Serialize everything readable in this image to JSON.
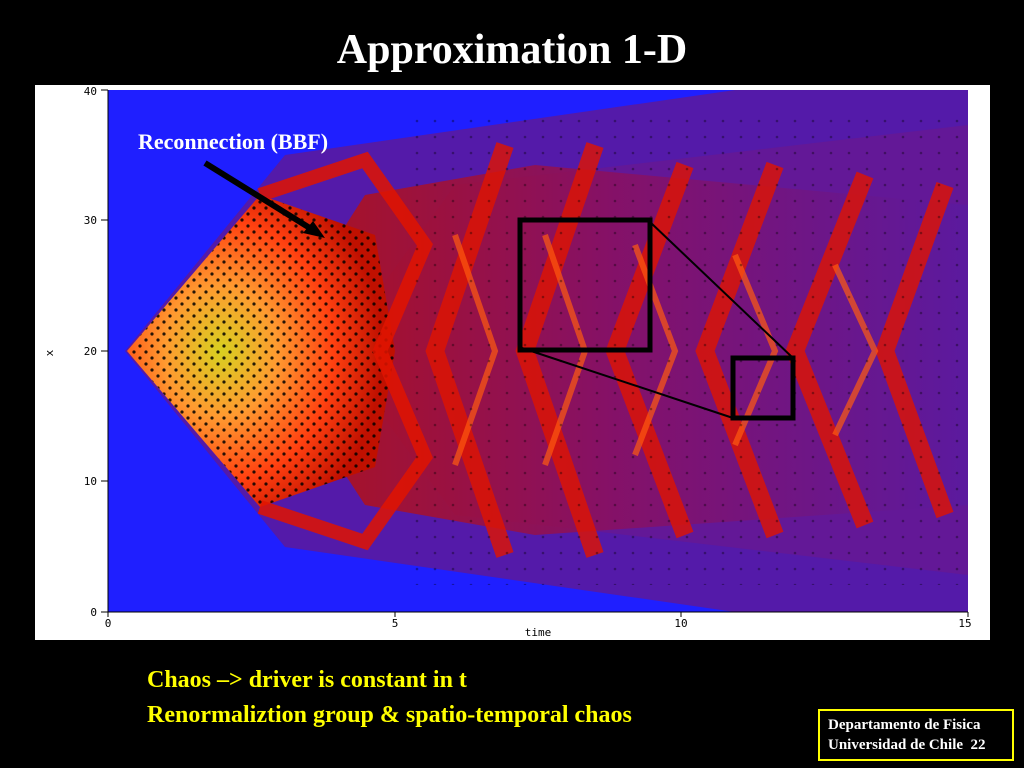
{
  "slide": {
    "title": "Approximation 1-D",
    "callout": "Reconnection (BBF)",
    "caption_line1": "Chaos –> driver is constant in t",
    "caption_line2": "Renormaliztion group & spatio-temporal chaos",
    "footer_line1": "Departamento de Fisica",
    "footer_line2": "Universidad de Chile  22"
  },
  "plot": {
    "xlabel": "time",
    "ylabel": "x",
    "xticks": [
      "0",
      "5",
      "10",
      "15"
    ],
    "yticks": [
      "0",
      "10",
      "20",
      "30",
      "40"
    ],
    "xlim": [
      0,
      15
    ],
    "ylim": [
      0,
      40
    ]
  },
  "colors": {
    "background": "#000000",
    "title": "#ffffff",
    "caption": "#ffff00",
    "footer_border": "#ffff00",
    "plot_blue": "#1f1fff",
    "plot_purple": "#5a1aa0",
    "plot_red": "#e01400",
    "plot_orange": "#ff7a18",
    "plot_yellow": "#f5d020"
  }
}
